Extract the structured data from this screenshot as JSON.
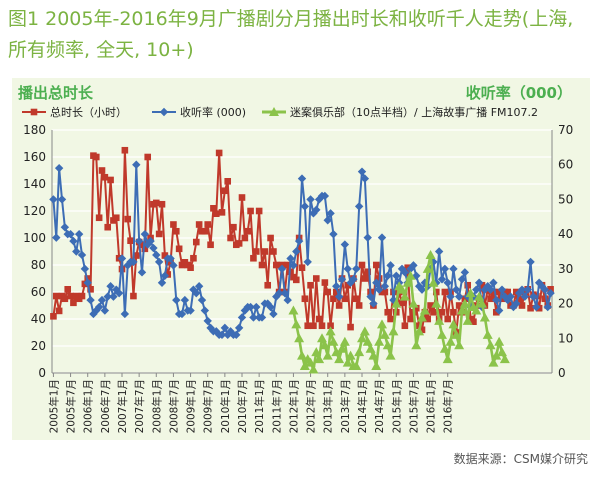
{
  "figure": {
    "title": "图1 2005年-2016年9月广播剧分月播出时长和收听千人走势(上海, 所有频率, 全天, 10+)",
    "source": "数据来源：CSM媒介研究"
  },
  "colors": {
    "background": "#f1f7e4",
    "title": "#7cb342",
    "hours": "#c0392b",
    "rating": "#3d6db5",
    "drama": "#8bc34a"
  },
  "chart_data": {
    "type": "line",
    "left_axis_title": "播出总时长",
    "right_axis_title": "收听率（000）",
    "ylim": [
      0,
      180
    ],
    "y_ticks": [
      0,
      20,
      40,
      60,
      80,
      100,
      120,
      140,
      160,
      180
    ],
    "y2lim": [
      0,
      70
    ],
    "y2_ticks": [
      0,
      10,
      20,
      30,
      40,
      50,
      60,
      70
    ],
    "x_tick_labels": [
      "2005年1月",
      "2005年7月",
      "2006年1月",
      "2006年7月",
      "2007年1月",
      "2007年7月",
      "2008年1月",
      "2008年7月",
      "2009年1月",
      "2009年7月",
      "2010年1月",
      "2010年7月",
      "2011年1月",
      "2011年7月",
      "2012年1月",
      "2012年7月",
      "2013年1月",
      "2013年7月",
      "2014年1月",
      "2014年7月",
      "2015年1月",
      "2015年7月",
      "2016年1月",
      "2016年7月"
    ],
    "legend": [
      "总时长（小时）",
      "收听率 (000)",
      "迷案俱乐部（10点半档）/ 上海故事广播  FM107.2"
    ],
    "series": [
      {
        "name": "总时长（小时）",
        "axis": "left",
        "color": "#c0392b",
        "marker": "square",
        "start_index": 0,
        "values": [
          42,
          57,
          46,
          57,
          55,
          62,
          57,
          52,
          57,
          55,
          57,
          66,
          70,
          62,
          161,
          160,
          115,
          150,
          145,
          108,
          143,
          113,
          115,
          85,
          77,
          165,
          114,
          98,
          57,
          87,
          97,
          95,
          92,
          160,
          100,
          125,
          126,
          103,
          125,
          87,
          73,
          82,
          110,
          105,
          92,
          80,
          82,
          80,
          78,
          85,
          97,
          110,
          105,
          105,
          110,
          95,
          122,
          118,
          163,
          119,
          135,
          142,
          100,
          108,
          95,
          96,
          130,
          100,
          105,
          120,
          85,
          90,
          120,
          80,
          90,
          65,
          100,
          90,
          80,
          60,
          80,
          60,
          80,
          75,
          71,
          69,
          100,
          78,
          55,
          35,
          65,
          35,
          70,
          40,
          35,
          67,
          60,
          35,
          55,
          60,
          50,
          70,
          55,
          65,
          34,
          70,
          55,
          50,
          80,
          70,
          75,
          60,
          50,
          80,
          70,
          60,
          60,
          45,
          40,
          60,
          45,
          60,
          52,
          35,
          78,
          40,
          45,
          48,
          35,
          32,
          45,
          40,
          50,
          45,
          60,
          40,
          45,
          60,
          40,
          60,
          45,
          30,
          50,
          45,
          55,
          65,
          40,
          38,
          50,
          55,
          65,
          50,
          62,
          55,
          60,
          45,
          60,
          55,
          60,
          60,
          50,
          50,
          60,
          55,
          50,
          60,
          62,
          48,
          58,
          57,
          48,
          65,
          55,
          50,
          62
        ]
      },
      {
        "name": "收听率 (000)",
        "axis": "right",
        "color": "#3d6db5",
        "marker": "diamond",
        "start_index": 0,
        "values": [
          50,
          39,
          59,
          50,
          42,
          40,
          40,
          38,
          35,
          40,
          34,
          30,
          26,
          21,
          17,
          18,
          19,
          21,
          18,
          22,
          25,
          22,
          24,
          23,
          33,
          17,
          31,
          32,
          32,
          60,
          38,
          29,
          40,
          37,
          38,
          36,
          34,
          32,
          26,
          28,
          33,
          33,
          31,
          21,
          17,
          17,
          21,
          18,
          18,
          24,
          23,
          25,
          21,
          18,
          15,
          13,
          12,
          12,
          11,
          11,
          13,
          11,
          12,
          11,
          11,
          13,
          16,
          18,
          19,
          19,
          16,
          19,
          16,
          16,
          20,
          20,
          19,
          17,
          22,
          23,
          30,
          23,
          21,
          33,
          31,
          35,
          38,
          56,
          48,
          32,
          50,
          46,
          47,
          50,
          51,
          51,
          44,
          46,
          40,
          25,
          22,
          27,
          37,
          30,
          26,
          27,
          30,
          48,
          58,
          56,
          39,
          22,
          20,
          26,
          24,
          39,
          25,
          28,
          31,
          21,
          28,
          26,
          30,
          29,
          26,
          30,
          31,
          28,
          25,
          24,
          26,
          25,
          30,
          32,
          26,
          35,
          27,
          30,
          26,
          22,
          30,
          24,
          22,
          27,
          29,
          22,
          19,
          22,
          24,
          26,
          19,
          24,
          25,
          24,
          26,
          21,
          18,
          24,
          22,
          21,
          22,
          19,
          20,
          23,
          24,
          22,
          24,
          32,
          22,
          19,
          26,
          25,
          24,
          19,
          23
        ]
      },
      {
        "name": "迷案俱乐部（10点半档）/ 上海故事广播  FM107.2",
        "axis": "right",
        "color": "#8bc34a",
        "marker": "triangle",
        "start_index": 84,
        "values": [
          18,
          14,
          10,
          5,
          2,
          4,
          3,
          1,
          6,
          4,
          10,
          8,
          5,
          12,
          9,
          6,
          4,
          7,
          9,
          3,
          5,
          2,
          2,
          6,
          10,
          12,
          9,
          7,
          5,
          2,
          9,
          14,
          11,
          8,
          5,
          12,
          20,
          25,
          24,
          22,
          26,
          28,
          20,
          8,
          12,
          16,
          18,
          30,
          34,
          26,
          20,
          15,
          11,
          7,
          4,
          9,
          14,
          11,
          8,
          18,
          20,
          15,
          23,
          19,
          18,
          22,
          20,
          16,
          11,
          8,
          3,
          5,
          9,
          6,
          4
        ]
      }
    ]
  }
}
